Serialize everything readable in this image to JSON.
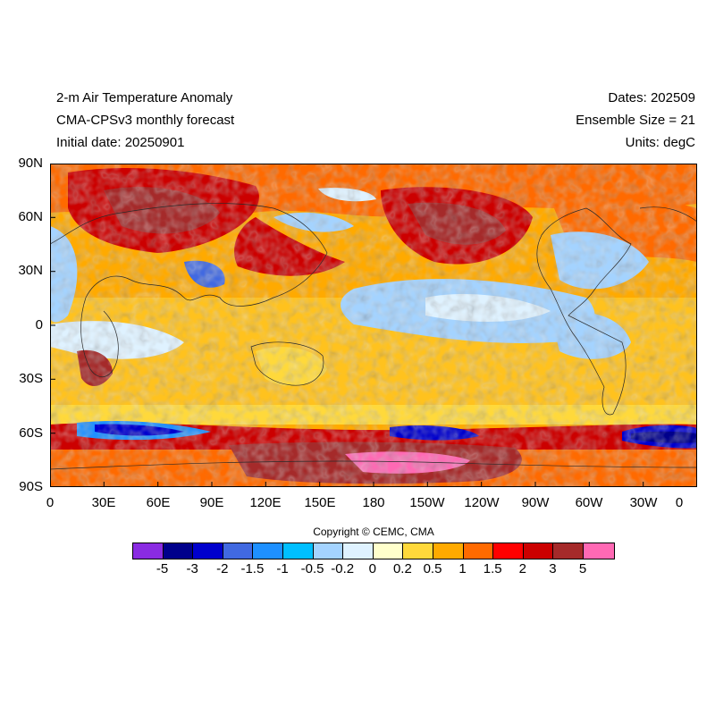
{
  "header": {
    "title": "2-m Air Temperature Anomaly",
    "subtitle": "CMA-CPSv3 monthly forecast",
    "initial_date": "Initial date: 20250901",
    "dates": "Dates: 202509",
    "ensemble": "Ensemble Size = 21",
    "units": "Units: degC"
  },
  "axes": {
    "lat_labels": [
      "90N",
      "60N",
      "30N",
      "0",
      "30S",
      "60S",
      "90S"
    ],
    "lon_labels": [
      "0",
      "30E",
      "60E",
      "90E",
      "120E",
      "150E",
      "180",
      "150W",
      "120W",
      "90W",
      "60W",
      "30W",
      "0"
    ]
  },
  "copyright": "Copyright © CEMC, CMA",
  "colorbar": {
    "colors": [
      "#8a2be2",
      "#00008b",
      "#0000cd",
      "#4169e1",
      "#1e90ff",
      "#00bfff",
      "#a4d3ff",
      "#dff2ff",
      "#ffffcc",
      "#ffd93b",
      "#ffaa00",
      "#ff6a00",
      "#ff0000",
      "#cc0000",
      "#a52a2a",
      "#ff69b4"
    ],
    "labels": [
      "-5",
      "-3",
      "-2",
      "-1.5",
      "-1",
      "-0.5",
      "-0.2",
      "0",
      "0.2",
      "0.5",
      "1",
      "1.5",
      "2",
      "3",
      "5"
    ]
  }
}
